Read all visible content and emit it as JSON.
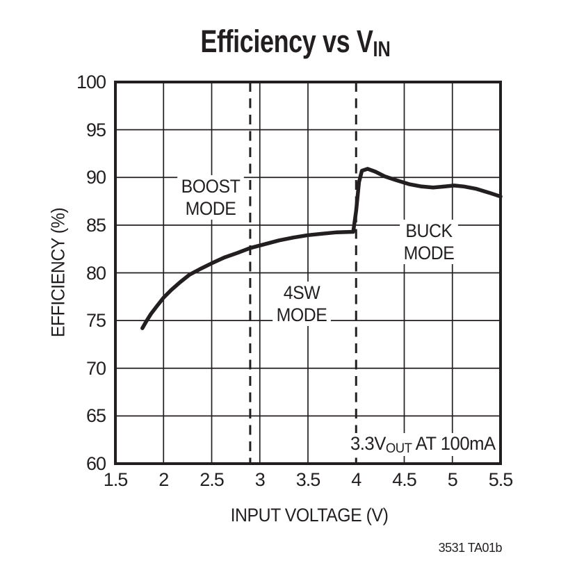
{
  "title": {
    "main": "Efficiency vs V",
    "subscript": "IN"
  },
  "y_axis": {
    "label": "EFFICIENCY (%)",
    "tick_labels": [
      "100",
      "95",
      "90",
      "85",
      "80",
      "75",
      "70",
      "65",
      "60"
    ],
    "tick_values": [
      100,
      95,
      90,
      85,
      80,
      75,
      70,
      65,
      60
    ]
  },
  "x_axis": {
    "label": "INPUT VOLTAGE (V)",
    "tick_labels": [
      "1.5",
      "2",
      "2.5",
      "3",
      "3.5",
      "4",
      "4.5",
      "5",
      "5.5"
    ],
    "tick_values": [
      1.5,
      2,
      2.5,
      3,
      3.5,
      4,
      4.5,
      5,
      5.5
    ]
  },
  "regions": {
    "boost": [
      "BOOST",
      "MODE"
    ],
    "foursw": [
      "4SW",
      "MODE"
    ],
    "buck": [
      "BUCK",
      "MODE"
    ]
  },
  "annotation": {
    "pre": "3.3V",
    "sub": "OUT",
    "post": " AT 100mA"
  },
  "footnote": "3531 TA01b",
  "colors": {
    "ink": "#231f20",
    "grid": "#231f20",
    "curve": "#231f20"
  },
  "chart_data": {
    "type": "line",
    "title": "Efficiency vs VIN",
    "xlabel": "INPUT VOLTAGE (V)",
    "ylabel": "EFFICIENCY (%)",
    "xlim": [
      1.5,
      5.5
    ],
    "ylim": [
      60,
      100
    ],
    "x_tick_step": 0.5,
    "y_tick_step": 5,
    "grid": true,
    "legend": "none",
    "mode_boundaries_dashed_x": [
      2.9,
      4.0
    ],
    "annotations": [
      "BOOST MODE (left of 2.9V)",
      "4SW MODE (2.9V to 4.0V)",
      "BUCK MODE (right of 4.0V)",
      "3.3VOUT AT 100mA"
    ],
    "series": [
      {
        "name": "Efficiency, 3.3VOUT at 100mA",
        "points": [
          [
            1.78,
            74.2
          ],
          [
            1.82,
            74.9
          ],
          [
            1.87,
            75.7
          ],
          [
            1.93,
            76.5
          ],
          [
            2.0,
            77.4
          ],
          [
            2.08,
            78.2
          ],
          [
            2.17,
            79.0
          ],
          [
            2.27,
            79.8
          ],
          [
            2.38,
            80.4
          ],
          [
            2.5,
            81.0
          ],
          [
            2.63,
            81.6
          ],
          [
            2.77,
            82.1
          ],
          [
            2.9,
            82.6
          ],
          [
            3.05,
            83.0
          ],
          [
            3.2,
            83.4
          ],
          [
            3.35,
            83.7
          ],
          [
            3.5,
            83.95
          ],
          [
            3.65,
            84.1
          ],
          [
            3.8,
            84.25
          ],
          [
            3.97,
            84.3
          ],
          [
            4.0,
            86.5
          ],
          [
            4.03,
            89.5
          ],
          [
            4.06,
            90.7
          ],
          [
            4.12,
            90.9
          ],
          [
            4.2,
            90.6
          ],
          [
            4.3,
            90.1
          ],
          [
            4.42,
            89.7
          ],
          [
            4.55,
            89.3
          ],
          [
            4.68,
            89.05
          ],
          [
            4.8,
            88.95
          ],
          [
            4.92,
            89.05
          ],
          [
            5.02,
            89.15
          ],
          [
            5.12,
            89.05
          ],
          [
            5.25,
            88.8
          ],
          [
            5.38,
            88.4
          ],
          [
            5.5,
            88.0
          ]
        ]
      }
    ]
  }
}
